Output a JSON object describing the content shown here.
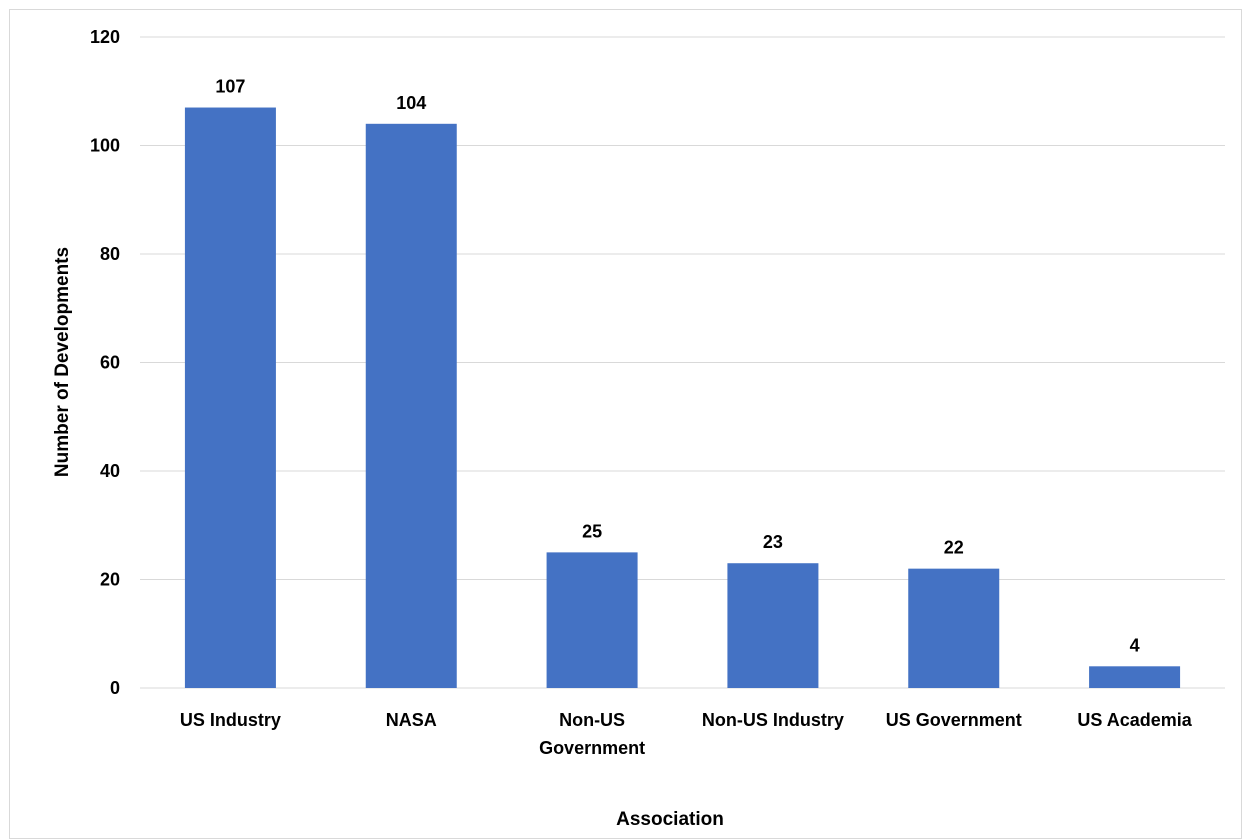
{
  "chart_data": {
    "type": "bar",
    "categories": [
      [
        "US Industry"
      ],
      [
        "NASA"
      ],
      [
        "Non-US",
        "Government"
      ],
      [
        "Non-US Industry"
      ],
      [
        "US Government"
      ],
      [
        "US Academia"
      ]
    ],
    "values": [
      107,
      104,
      25,
      23,
      22,
      4
    ],
    "xlabel": "Association",
    "ylabel": "Number of Developments",
    "ylim": [
      0,
      120
    ],
    "yticks": [
      0,
      20,
      40,
      60,
      80,
      100,
      120
    ],
    "grid": true,
    "bar_color": "#4472C4",
    "grid_color": "#d9d9d9"
  }
}
